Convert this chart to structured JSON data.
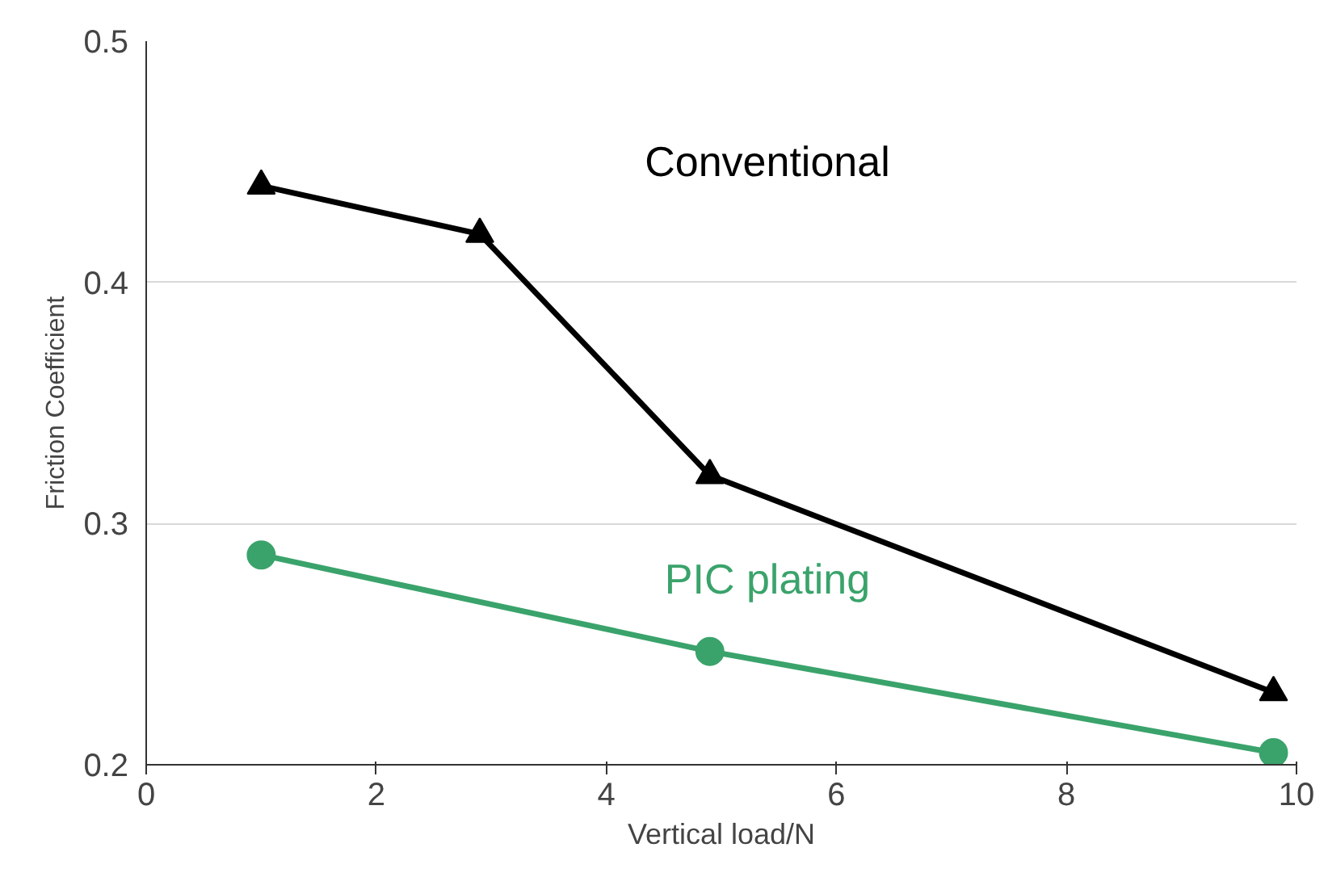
{
  "chart_data": {
    "type": "line",
    "xlabel": "Vertical load/N",
    "ylabel": "Friction Coefficient",
    "xlim": [
      0,
      10
    ],
    "xticks": [
      0,
      2,
      4,
      6,
      8,
      10
    ],
    "ylim": [
      0.2,
      0.5
    ],
    "yticks": [
      0.2,
      0.3,
      0.4,
      0.5
    ],
    "grid": "y",
    "series": [
      {
        "name": "Conventional",
        "color": "#000000",
        "marker": "triangle",
        "x": [
          1.0,
          2.9,
          4.9,
          9.8
        ],
        "values": [
          0.44,
          0.42,
          0.32,
          0.23
        ]
      },
      {
        "name": "PIC plating",
        "color": "#3aa36b",
        "marker": "circle",
        "x": [
          1.0,
          4.9,
          9.8
        ],
        "values": [
          0.287,
          0.247,
          0.205
        ]
      }
    ]
  }
}
